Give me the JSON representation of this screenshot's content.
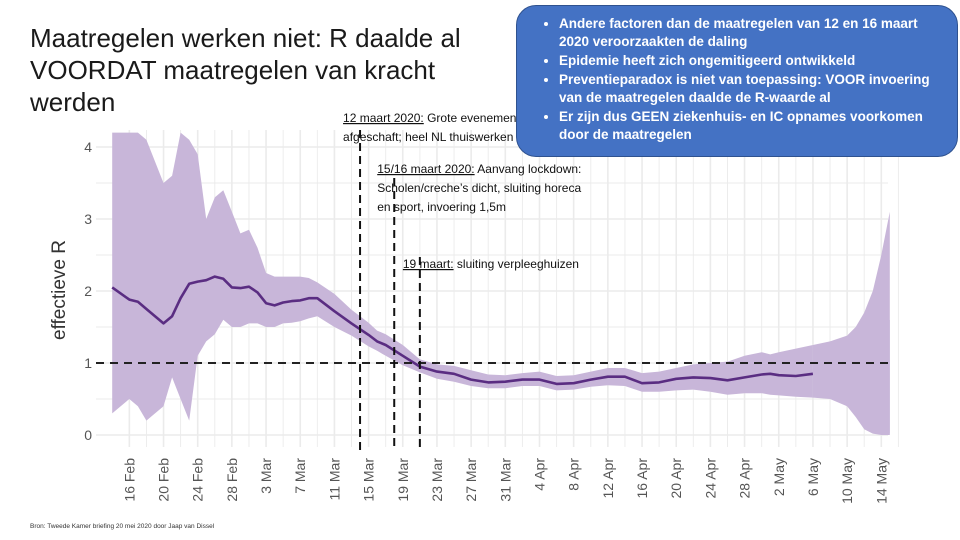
{
  "slide": {
    "title_line1": "Maatregelen werken niet: R daalde al",
    "title_line2": "VOORDAT maatregelen van kracht werden",
    "source": "Bron: Tweede Kamer briefing 20 mei 2020 door Jaap van Dissel"
  },
  "info_box": {
    "bullets": [
      "Andere factoren dan de maatregelen van 12 en 16 maart 2020 veroorzaakten de daling",
      "Epidemie heeft zich ongemitigeerd ontwikkeld",
      "Preventieparadox is niet van toepassing: VOOR invoering van de maatregelen daalde de R-waarde al",
      "Er zijn dus GEEN ziekenhuis- en IC opnames voorkomen door de maatregelen"
    ]
  },
  "chart_data": {
    "type": "line",
    "ylabel": "effectieve R",
    "ylim": [
      0,
      4.2
    ],
    "yticks": [
      "0",
      "1",
      "2",
      "3",
      "4"
    ],
    "xlim": [
      -3,
      90
    ],
    "xtick_labels": [
      "16 Feb",
      "20 Feb",
      "24 Feb",
      "28 Feb",
      "3 Mar",
      "7 Mar",
      "11 Mar",
      "15 Mar",
      "19 Mar",
      "23 Mar",
      "27 Mar",
      "31 Mar",
      "4 Apr",
      "8 Apr",
      "12 Apr",
      "16 Apr",
      "20 Apr",
      "24 Apr",
      "28 Apr",
      "2 May",
      "6 May",
      "10 May",
      "14 May"
    ],
    "reference_line": {
      "y": 1,
      "style": "dashed"
    },
    "series": [
      {
        "name": "effectieve R",
        "x": [
          -2,
          0,
          1,
          2,
          4,
          5,
          6,
          7,
          8,
          9,
          10,
          11,
          12,
          13,
          14,
          15,
          16,
          17,
          18,
          19,
          20,
          21,
          22,
          24,
          26,
          28,
          29,
          30,
          32,
          34,
          36,
          38,
          40,
          42,
          44,
          46,
          48,
          50,
          52,
          54,
          56,
          58,
          60,
          62,
          64,
          66,
          68,
          70,
          72,
          74,
          75,
          76,
          78,
          80
        ],
        "y": [
          2.05,
          1.88,
          1.85,
          1.75,
          1.55,
          1.65,
          1.9,
          2.1,
          2.13,
          2.15,
          2.2,
          2.17,
          2.05,
          2.04,
          2.06,
          1.98,
          1.83,
          1.8,
          1.84,
          1.86,
          1.87,
          1.9,
          1.9,
          1.72,
          1.55,
          1.39,
          1.3,
          1.25,
          1.1,
          0.95,
          0.88,
          0.85,
          0.77,
          0.73,
          0.74,
          0.77,
          0.77,
          0.71,
          0.72,
          0.77,
          0.81,
          0.81,
          0.72,
          0.73,
          0.78,
          0.8,
          0.79,
          0.76,
          0.8,
          0.84,
          0.85,
          0.83,
          0.82,
          0.85
        ],
        "lower": [
          0.3,
          0.5,
          0.4,
          0.2,
          0.4,
          0.8,
          0.5,
          0.2,
          1.1,
          1.3,
          1.4,
          1.6,
          1.5,
          1.5,
          1.55,
          1.55,
          1.5,
          1.5,
          1.55,
          1.56,
          1.58,
          1.62,
          1.65,
          1.5,
          1.38,
          1.23,
          1.17,
          1.1,
          0.97,
          0.87,
          0.78,
          0.74,
          0.68,
          0.65,
          0.65,
          0.68,
          0.68,
          0.62,
          0.63,
          0.67,
          0.69,
          0.68,
          0.6,
          0.6,
          0.62,
          0.63,
          0.6,
          0.56,
          0.58,
          0.58,
          0.56,
          0.55,
          0.53,
          0.52
        ],
        "upper": [
          4.2,
          4.2,
          4.2,
          4.1,
          3.5,
          3.6,
          4.2,
          4.1,
          3.9,
          3.0,
          3.3,
          3.4,
          3.1,
          2.8,
          2.85,
          2.6,
          2.25,
          2.2,
          2.2,
          2.2,
          2.2,
          2.18,
          2.12,
          1.96,
          1.74,
          1.56,
          1.45,
          1.4,
          1.25,
          1.05,
          0.98,
          0.96,
          0.9,
          0.84,
          0.83,
          0.86,
          0.88,
          0.82,
          0.83,
          0.88,
          0.93,
          0.93,
          0.86,
          0.88,
          0.93,
          0.98,
          1.0,
          1.02,
          1.1,
          1.15,
          1.12,
          1.15,
          1.2,
          1.25
        ]
      }
    ],
    "band_extension": {
      "x": [
        80,
        82,
        84,
        86,
        88,
        89
      ],
      "lower": [
        0.52,
        0.5,
        0.4,
        0.2,
        0.02,
        0.02
      ],
      "upper": [
        1.25,
        1.3,
        1.38,
        1.2,
        1.5,
        1.6
      ]
    },
    "band_tail": {
      "x": [
        84,
        85,
        86,
        87,
        88,
        89
      ],
      "lower": [
        0.4,
        0.25,
        0.08,
        0.02,
        0.0,
        0.0
      ],
      "upper": [
        1.38,
        1.5,
        1.7,
        2.0,
        2.5,
        3.1
      ]
    },
    "annotations": [
      {
        "x": 27,
        "date_label": "12 maart 2020:",
        "lines": [
          " Grote evenementen",
          "afgeschaft; heel NL thuiswerken"
        ]
      },
      {
        "x": 31,
        "date_label": "15/16 maart 2020:",
        "lines": [
          " Aanvang lockdown:",
          "Scholen/creche’s dicht, sluiting horeca",
          "en sport, invoering 1,5m"
        ]
      },
      {
        "x": 34,
        "date_label": "19 maart:",
        "lines": [
          " sluiting verpleeghuizen"
        ]
      }
    ],
    "colors": {
      "band": "#c8b6d9",
      "line": "#5a2d82",
      "grid": "#ebebeb",
      "reference": "#222222"
    }
  }
}
